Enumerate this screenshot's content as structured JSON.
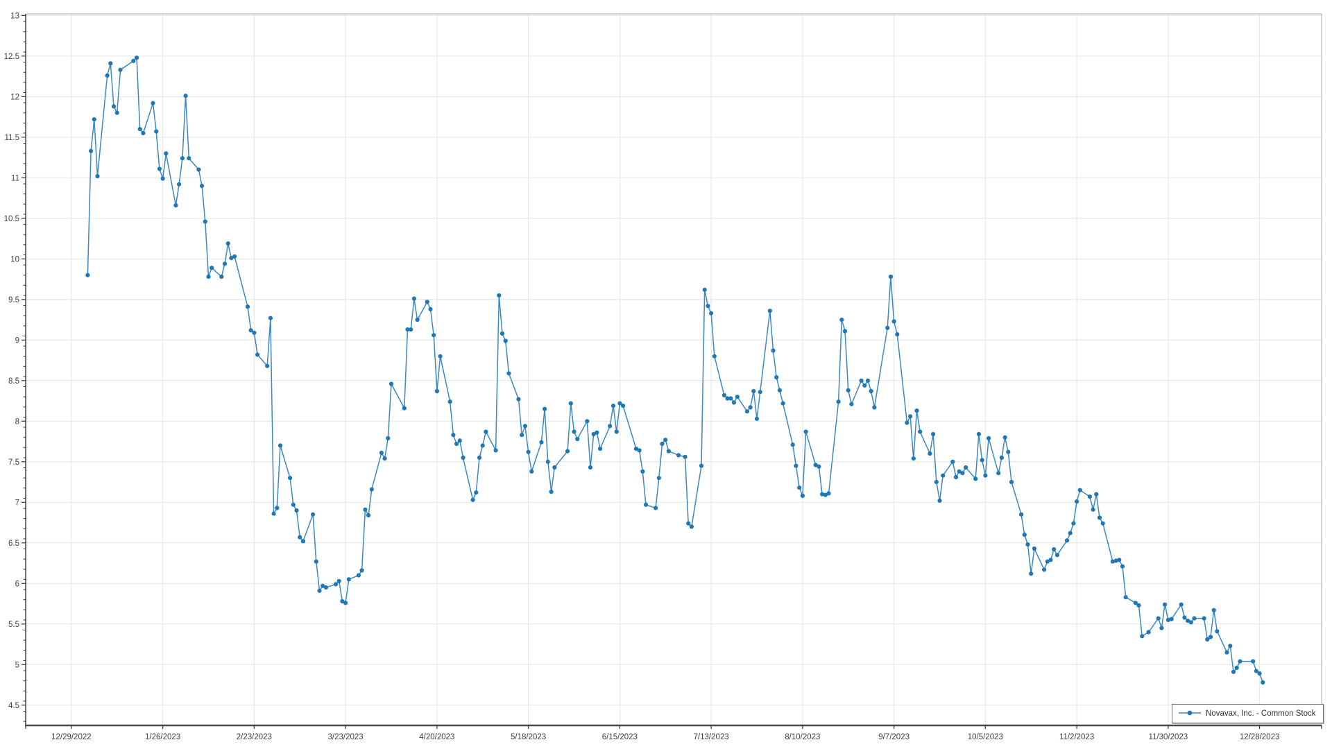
{
  "legend": {
    "label": "Novavax, Inc. - Common Stock"
  },
  "colors": {
    "series_line": "#3b87c4",
    "series_marker": "#1f77b4",
    "grid": "#e4e4e4",
    "axis_dark": "#4a4a4a",
    "border_light": "#aaaaaa",
    "tick": "#303030",
    "label": "#3f3f3f",
    "background": "#ffffff"
  },
  "chart_data": {
    "type": "line",
    "title": "",
    "xlabel": "",
    "ylabel": "",
    "grid": true,
    "legend_position": "bottom-right",
    "ylim": [
      4.25,
      13.02
    ],
    "y_ticks": [
      13,
      12.5,
      12,
      11.5,
      11,
      10.5,
      10,
      9.5,
      9,
      8.5,
      8,
      7.5,
      7,
      6.5,
      6,
      5.5,
      5,
      4.5
    ],
    "x_domain": [
      "2022-12-15",
      "2024-01-16"
    ],
    "x_tick_dates": [
      "2022-12-29",
      "2023-01-26",
      "2023-02-23",
      "2023-03-23",
      "2023-04-20",
      "2023-05-18",
      "2023-06-15",
      "2023-07-13",
      "2023-08-10",
      "2023-09-07",
      "2023-10-05",
      "2023-11-02",
      "2023-11-30",
      "2023-12-28"
    ],
    "x_tick_labels": [
      "12/29/2022",
      "1/26/2023",
      "2/23/2023",
      "3/23/2023",
      "4/20/2023",
      "5/18/2023",
      "6/15/2023",
      "7/13/2023",
      "8/10/2023",
      "9/7/2023",
      "10/5/2023",
      "11/2/2023",
      "11/30/2023",
      "12/28/2023"
    ],
    "series": [
      {
        "name": "Novavax, Inc. - Common Stock",
        "dates": [
          "2023-01-03",
          "2023-01-04",
          "2023-01-05",
          "2023-01-06",
          "2023-01-09",
          "2023-01-10",
          "2023-01-11",
          "2023-01-12",
          "2023-01-13",
          "2023-01-17",
          "2023-01-18",
          "2023-01-19",
          "2023-01-20",
          "2023-01-23",
          "2023-01-24",
          "2023-01-25",
          "2023-01-26",
          "2023-01-27",
          "2023-01-30",
          "2023-01-31",
          "2023-02-01",
          "2023-02-02",
          "2023-02-03",
          "2023-02-06",
          "2023-02-07",
          "2023-02-08",
          "2023-02-09",
          "2023-02-10",
          "2023-02-13",
          "2023-02-14",
          "2023-02-15",
          "2023-02-16",
          "2023-02-17",
          "2023-02-21",
          "2023-02-22",
          "2023-02-23",
          "2023-02-24",
          "2023-02-27",
          "2023-02-28",
          "2023-03-01",
          "2023-03-02",
          "2023-03-03",
          "2023-03-06",
          "2023-03-07",
          "2023-03-08",
          "2023-03-09",
          "2023-03-10",
          "2023-03-13",
          "2023-03-14",
          "2023-03-15",
          "2023-03-16",
          "2023-03-17",
          "2023-03-20",
          "2023-03-21",
          "2023-03-22",
          "2023-03-23",
          "2023-03-24",
          "2023-03-27",
          "2023-03-28",
          "2023-03-29",
          "2023-03-30",
          "2023-03-31",
          "2023-04-03",
          "2023-04-04",
          "2023-04-05",
          "2023-04-06",
          "2023-04-10",
          "2023-04-11",
          "2023-04-12",
          "2023-04-13",
          "2023-04-14",
          "2023-04-17",
          "2023-04-18",
          "2023-04-19",
          "2023-04-20",
          "2023-04-21",
          "2023-04-24",
          "2023-04-25",
          "2023-04-26",
          "2023-04-27",
          "2023-04-28",
          "2023-05-01",
          "2023-05-02",
          "2023-05-03",
          "2023-05-04",
          "2023-05-05",
          "2023-05-08",
          "2023-05-09",
          "2023-05-10",
          "2023-05-11",
          "2023-05-12",
          "2023-05-15",
          "2023-05-16",
          "2023-05-17",
          "2023-05-18",
          "2023-05-19",
          "2023-05-22",
          "2023-05-23",
          "2023-05-24",
          "2023-05-25",
          "2023-05-26",
          "2023-05-30",
          "2023-05-31",
          "2023-06-01",
          "2023-06-02",
          "2023-06-05",
          "2023-06-06",
          "2023-06-07",
          "2023-06-08",
          "2023-06-09",
          "2023-06-12",
          "2023-06-13",
          "2023-06-14",
          "2023-06-15",
          "2023-06-16",
          "2023-06-20",
          "2023-06-21",
          "2023-06-22",
          "2023-06-23",
          "2023-06-26",
          "2023-06-27",
          "2023-06-28",
          "2023-06-29",
          "2023-06-30",
          "2023-07-03",
          "2023-07-05",
          "2023-07-06",
          "2023-07-07",
          "2023-07-10",
          "2023-07-11",
          "2023-07-12",
          "2023-07-13",
          "2023-07-14",
          "2023-07-17",
          "2023-07-18",
          "2023-07-19",
          "2023-07-20",
          "2023-07-21",
          "2023-07-24",
          "2023-07-25",
          "2023-07-26",
          "2023-07-27",
          "2023-07-28",
          "2023-07-31",
          "2023-08-01",
          "2023-08-02",
          "2023-08-03",
          "2023-08-04",
          "2023-08-07",
          "2023-08-08",
          "2023-08-09",
          "2023-08-10",
          "2023-08-11",
          "2023-08-14",
          "2023-08-15",
          "2023-08-16",
          "2023-08-17",
          "2023-08-18",
          "2023-08-21",
          "2023-08-22",
          "2023-08-23",
          "2023-08-24",
          "2023-08-25",
          "2023-08-28",
          "2023-08-29",
          "2023-08-30",
          "2023-08-31",
          "2023-09-01",
          "2023-09-05",
          "2023-09-06",
          "2023-09-07",
          "2023-09-08",
          "2023-09-11",
          "2023-09-12",
          "2023-09-13",
          "2023-09-14",
          "2023-09-15",
          "2023-09-18",
          "2023-09-19",
          "2023-09-20",
          "2023-09-21",
          "2023-09-22",
          "2023-09-25",
          "2023-09-26",
          "2023-09-27",
          "2023-09-28",
          "2023-09-29",
          "2023-10-02",
          "2023-10-03",
          "2023-10-04",
          "2023-10-05",
          "2023-10-06",
          "2023-10-09",
          "2023-10-10",
          "2023-10-11",
          "2023-10-12",
          "2023-10-13",
          "2023-10-16",
          "2023-10-17",
          "2023-10-18",
          "2023-10-19",
          "2023-10-20",
          "2023-10-23",
          "2023-10-24",
          "2023-10-25",
          "2023-10-26",
          "2023-10-27",
          "2023-10-30",
          "2023-10-31",
          "2023-11-01",
          "2023-11-02",
          "2023-11-03",
          "2023-11-06",
          "2023-11-07",
          "2023-11-08",
          "2023-11-09",
          "2023-11-10",
          "2023-11-13",
          "2023-11-14",
          "2023-11-15",
          "2023-11-16",
          "2023-11-17",
          "2023-11-20",
          "2023-11-21",
          "2023-11-22",
          "2023-11-24",
          "2023-11-27",
          "2023-11-28",
          "2023-11-29",
          "2023-11-30",
          "2023-12-01",
          "2023-12-04",
          "2023-12-05",
          "2023-12-06",
          "2023-12-07",
          "2023-12-08",
          "2023-12-11",
          "2023-12-12",
          "2023-12-13",
          "2023-12-14",
          "2023-12-15",
          "2023-12-18",
          "2023-12-19",
          "2023-12-20",
          "2023-12-21",
          "2023-12-22",
          "2023-12-26",
          "2023-12-27",
          "2023-12-28",
          "2023-12-29"
        ],
        "values": [
          9.8,
          11.33,
          11.72,
          11.02,
          12.26,
          12.41,
          11.88,
          11.8,
          12.33,
          12.44,
          12.48,
          11.6,
          11.55,
          11.92,
          11.57,
          11.11,
          10.99,
          11.3,
          10.66,
          10.92,
          11.24,
          12.01,
          11.24,
          11.1,
          10.9,
          10.46,
          9.78,
          9.89,
          9.78,
          9.94,
          10.19,
          10.01,
          10.03,
          9.41,
          9.12,
          9.09,
          8.82,
          8.68,
          9.27,
          6.86,
          6.93,
          7.7,
          7.3,
          6.97,
          6.9,
          6.57,
          6.52,
          6.85,
          6.27,
          5.91,
          5.97,
          5.95,
          5.99,
          6.03,
          5.78,
          5.76,
          6.05,
          6.1,
          6.16,
          6.91,
          6.84,
          7.16,
          7.61,
          7.54,
          7.79,
          8.46,
          8.16,
          9.13,
          9.13,
          9.51,
          9.25,
          9.47,
          9.38,
          9.06,
          8.37,
          8.8,
          8.24,
          7.83,
          7.72,
          7.76,
          7.55,
          7.03,
          7.12,
          7.55,
          7.7,
          7.87,
          7.64,
          9.55,
          9.08,
          8.99,
          8.59,
          8.27,
          7.83,
          7.94,
          7.62,
          7.38,
          7.74,
          8.15,
          7.5,
          7.13,
          7.43,
          7.63,
          8.22,
          7.87,
          7.78,
          8.0,
          7.43,
          7.84,
          7.86,
          7.66,
          7.94,
          8.19,
          7.87,
          8.22,
          8.19,
          7.66,
          7.64,
          7.38,
          6.97,
          6.93,
          7.3,
          7.72,
          7.77,
          7.63,
          7.58,
          7.56,
          6.74,
          6.7,
          7.45,
          9.62,
          9.42,
          9.33,
          8.8,
          8.32,
          8.28,
          8.28,
          8.23,
          8.3,
          8.12,
          8.17,
          8.37,
          8.03,
          8.36,
          9.36,
          8.87,
          8.54,
          8.38,
          8.22,
          7.71,
          7.45,
          7.18,
          7.08,
          7.87,
          7.46,
          7.44,
          7.1,
          7.09,
          7.11,
          8.24,
          9.25,
          9.11,
          8.38,
          8.21,
          8.5,
          8.44,
          8.5,
          8.37,
          8.17,
          9.15,
          9.78,
          9.23,
          9.07,
          7.98,
          8.06,
          7.54,
          8.13,
          7.87,
          7.6,
          7.84,
          7.25,
          7.02,
          7.33,
          7.5,
          7.31,
          7.38,
          7.36,
          7.43,
          7.29,
          7.84,
          7.52,
          7.33,
          7.79,
          7.36,
          7.55,
          7.8,
          7.62,
          7.25,
          6.85,
          6.6,
          6.48,
          6.12,
          6.43,
          6.17,
          6.27,
          6.29,
          6.42,
          6.35,
          6.53,
          6.62,
          6.74,
          7.01,
          7.15,
          7.07,
          6.91,
          7.1,
          6.81,
          6.74,
          6.27,
          6.28,
          6.29,
          6.21,
          5.83,
          5.76,
          5.73,
          5.35,
          5.4,
          5.57,
          5.45,
          5.74,
          5.55,
          5.56,
          5.74,
          5.58,
          5.54,
          5.52,
          5.57,
          5.57,
          5.31,
          5.34,
          5.67,
          5.41,
          5.15,
          5.23,
          4.91,
          4.96,
          5.04,
          5.04,
          4.92,
          4.89,
          4.78
        ]
      }
    ]
  }
}
